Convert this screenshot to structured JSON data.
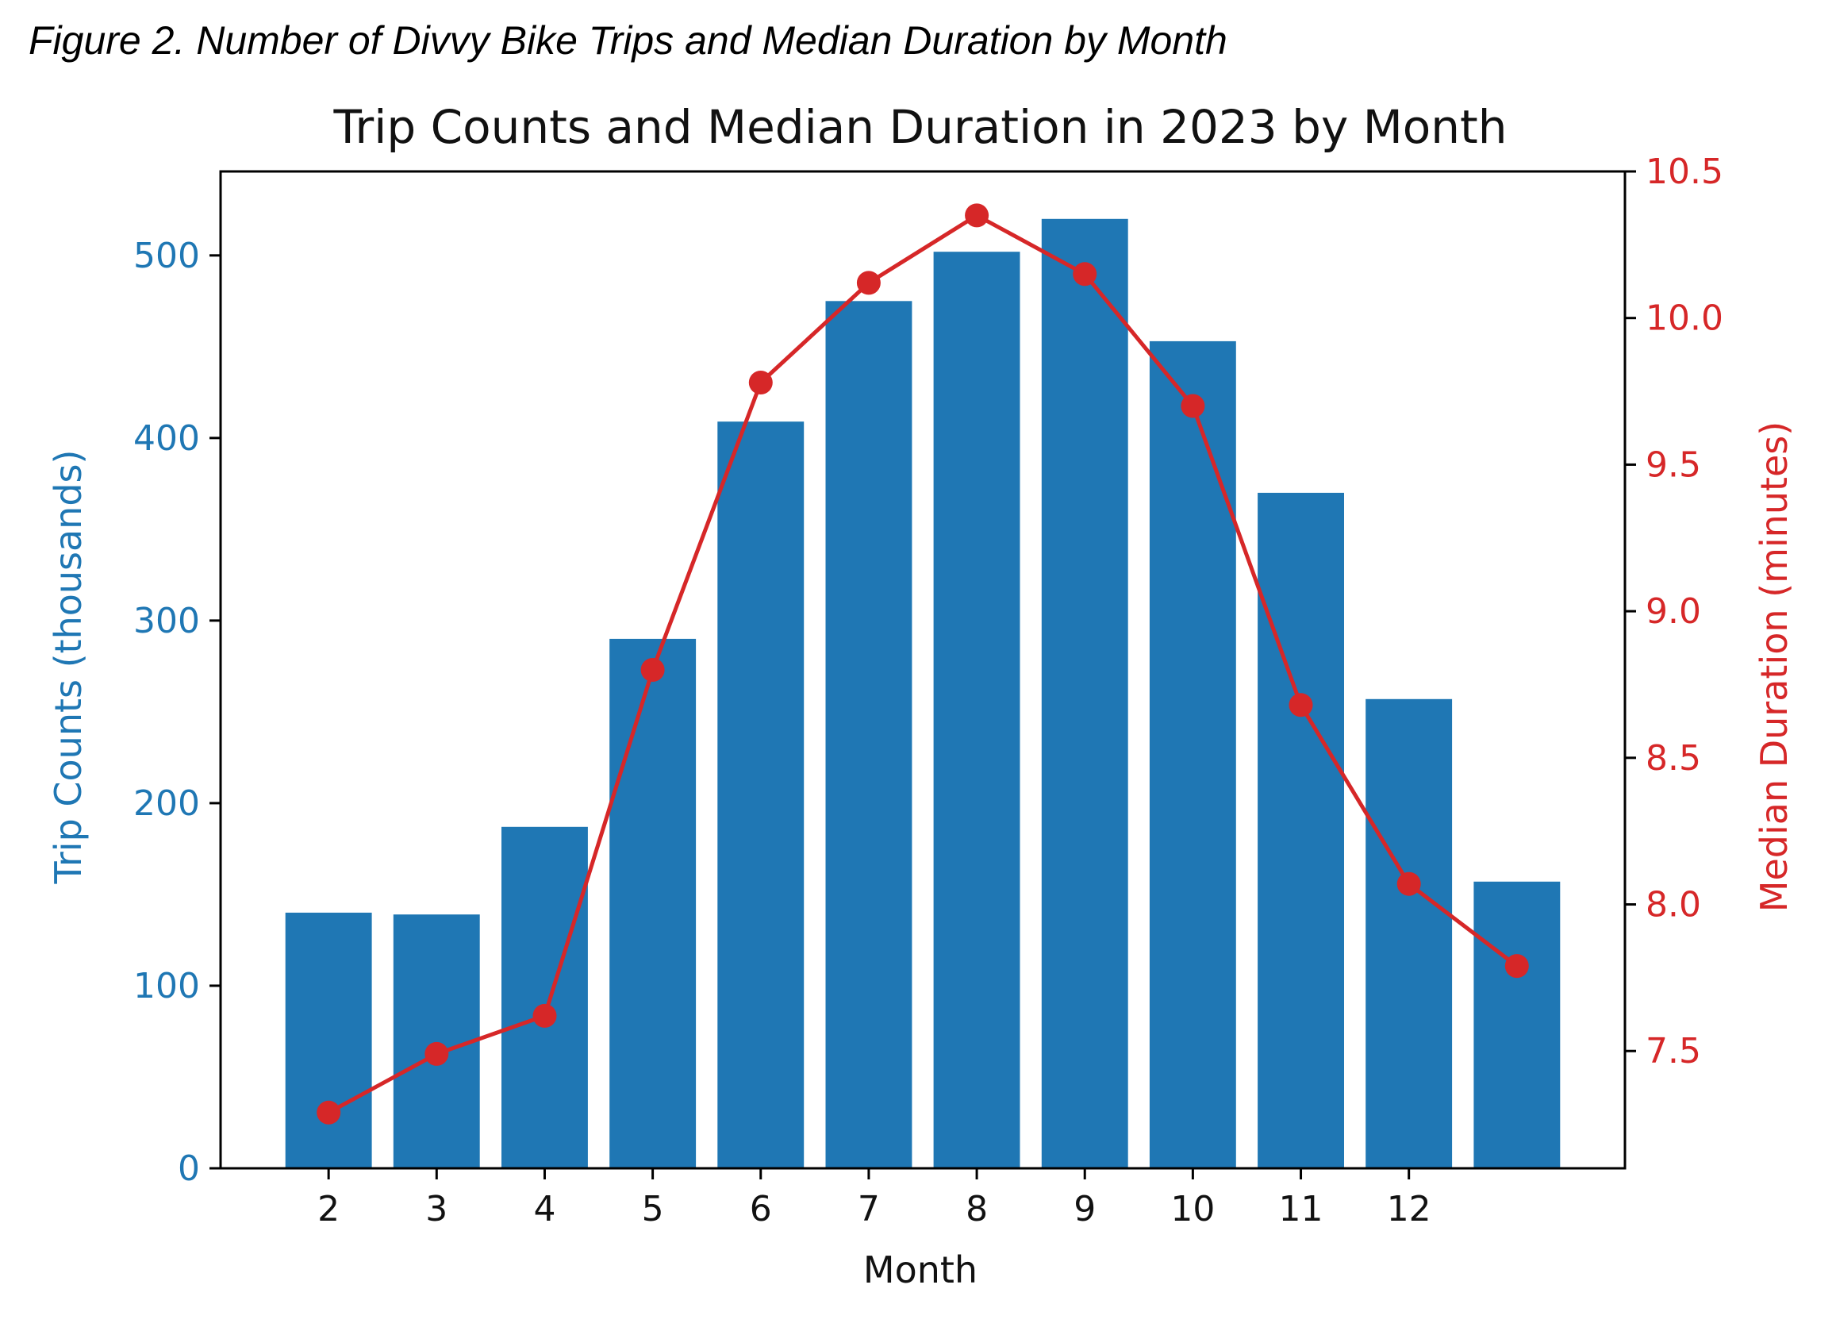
{
  "figure_caption": "Figure 2. Number of Divvy Bike Trips and Median Duration by Month",
  "colors": {
    "bar": "#1f77b4",
    "line": "#d62728",
    "left_axis_text": "#1f77b4",
    "right_axis_text": "#d62728",
    "axes": "#000000"
  },
  "chart_data": {
    "type": "bar",
    "title": "Trip Counts and Median Duration in 2023 by Month",
    "xlabel": "Month",
    "x_tick_labels": [
      "2",
      "3",
      "4",
      "5",
      "6",
      "7",
      "8",
      "9",
      "10",
      "11",
      "12"
    ],
    "x": [
      2,
      3,
      4,
      5,
      6,
      7,
      8,
      9,
      10,
      11,
      12,
      13
    ],
    "xlim": [
      1,
      14
    ],
    "series": [
      {
        "type": "bar",
        "axis": "left",
        "values": [
          140,
          139,
          187,
          290,
          409,
          475,
          502,
          520,
          453,
          370,
          257,
          157
        ]
      },
      {
        "type": "line",
        "axis": "right",
        "marker": "circle",
        "values": [
          7.29,
          7.49,
          7.62,
          8.8,
          9.78,
          10.12,
          10.35,
          10.15,
          9.7,
          8.68,
          8.07,
          7.79
        ]
      }
    ],
    "ylabel": "Trip Counts (thousands)",
    "ylim": [
      0,
      546
    ],
    "y_ticks": [
      0,
      100,
      200,
      300,
      400,
      500
    ],
    "y_tick_labels": [
      "0",
      "100",
      "200",
      "300",
      "400",
      "500"
    ],
    "y2label": "Median Duration (minutes)",
    "y2lim": [
      7.1,
      10.5
    ],
    "y2_ticks": [
      7.5,
      8.0,
      8.5,
      9.0,
      9.5,
      10.0,
      10.5
    ],
    "y2_tick_labels": [
      "7.5",
      "8.0",
      "8.5",
      "9.0",
      "9.5",
      "10.0",
      "10.5"
    ],
    "grid": false,
    "legend": "none"
  }
}
